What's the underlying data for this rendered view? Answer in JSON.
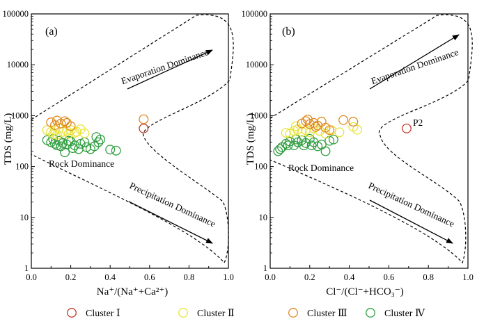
{
  "chart_data": [
    {
      "type": "scatter",
      "panel_label": "(a)",
      "xlabel": "Na⁺/(Na⁺+Ca²⁺)",
      "ylabel": "TDS (mg/L)",
      "xlim": [
        0,
        1.0
      ],
      "ylim": [
        1,
        100000
      ],
      "yscale": "log",
      "x_ticks": [
        "0.0",
        "0.2",
        "0.4",
        "0.6",
        "0.8",
        "1.0"
      ],
      "y_ticks": [
        "1",
        "10",
        "100",
        "1000",
        "10000",
        "100000"
      ],
      "annotations": {
        "evaporation": "Evaporation Dominance",
        "rock": "Rock Dominance",
        "precipitation": "Precipitation Dominance"
      },
      "series": [
        {
          "name": "Cluster Ⅰ",
          "color": "#c0392b",
          "points": [
            [
              0.57,
              560
            ]
          ]
        },
        {
          "name": "Cluster Ⅱ",
          "color": "#e8e33a",
          "points": [
            [
              0.1,
              480
            ],
            [
              0.12,
              520
            ],
            [
              0.14,
              560
            ],
            [
              0.16,
              480
            ],
            [
              0.18,
              500
            ],
            [
              0.2,
              520
            ],
            [
              0.22,
              460
            ],
            [
              0.25,
              540
            ],
            [
              0.27,
              450
            ],
            [
              0.13,
              420
            ],
            [
              0.11,
              430
            ],
            [
              0.19,
              440
            ],
            [
              0.08,
              520
            ],
            [
              0.23,
              480
            ]
          ]
        },
        {
          "name": "Cluster Ⅲ",
          "color": "#e08a1e",
          "points": [
            [
              0.1,
              740
            ],
            [
              0.13,
              800
            ],
            [
              0.15,
              700
            ],
            [
              0.17,
              780
            ],
            [
              0.2,
              620
            ],
            [
              0.12,
              650
            ],
            [
              0.18,
              720
            ],
            [
              0.57,
              850
            ]
          ]
        },
        {
          "name": "Cluster Ⅳ",
          "color": "#2f9e3f",
          "points": [
            [
              0.08,
              330
            ],
            [
              0.1,
              300
            ],
            [
              0.12,
              280
            ],
            [
              0.14,
              320
            ],
            [
              0.15,
              250
            ],
            [
              0.16,
              290
            ],
            [
              0.18,
              270
            ],
            [
              0.2,
              310
            ],
            [
              0.21,
              230
            ],
            [
              0.22,
              260
            ],
            [
              0.25,
              280
            ],
            [
              0.27,
              300
            ],
            [
              0.3,
              220
            ],
            [
              0.32,
              250
            ],
            [
              0.34,
              300
            ],
            [
              0.35,
              340
            ],
            [
              0.4,
              215
            ],
            [
              0.43,
              205
            ],
            [
              0.17,
              190
            ],
            [
              0.19,
              320
            ],
            [
              0.13,
              260
            ],
            [
              0.11,
              350
            ],
            [
              0.24,
              220
            ],
            [
              0.28,
              240
            ],
            [
              0.33,
              380
            ]
          ]
        }
      ]
    },
    {
      "type": "scatter",
      "panel_label": "(b)",
      "xlabel": "Cl⁻/(Cl⁻+HCO₃⁻)",
      "ylabel": "TDS (mg/L)",
      "xlim": [
        0,
        1.0
      ],
      "ylim": [
        1,
        100000
      ],
      "yscale": "log",
      "x_ticks": [
        "0.0",
        "0.2",
        "0.4",
        "0.6",
        "0.8",
        "1.0"
      ],
      "y_ticks": [
        "1",
        "10",
        "100",
        "1000",
        "10000",
        "100000"
      ],
      "annotations": {
        "evaporation": "Evaporation Dominance",
        "rock": "Rock Dominance",
        "precipitation": "Precipitation Dominance",
        "point_label": "P2"
      },
      "series": [
        {
          "name": "Cluster Ⅰ",
          "color": "#c0392b",
          "points": [
            [
              0.69,
              560
            ]
          ]
        },
        {
          "name": "Cluster Ⅱ",
          "color": "#e8e33a",
          "points": [
            [
              0.08,
              460
            ],
            [
              0.12,
              500
            ],
            [
              0.14,
              540
            ],
            [
              0.16,
              480
            ],
            [
              0.18,
              520
            ],
            [
              0.2,
              470
            ],
            [
              0.22,
              560
            ],
            [
              0.25,
              500
            ],
            [
              0.28,
              440
            ],
            [
              0.31,
              520
            ],
            [
              0.35,
              470
            ],
            [
              0.42,
              600
            ],
            [
              0.44,
              530
            ],
            [
              0.1,
              440
            ],
            [
              0.13,
              620
            ]
          ]
        },
        {
          "name": "Cluster Ⅲ",
          "color": "#e08a1e",
          "points": [
            [
              0.18,
              780
            ],
            [
              0.2,
              680
            ],
            [
              0.22,
              720
            ],
            [
              0.24,
              640
            ],
            [
              0.26,
              760
            ],
            [
              0.28,
              580
            ],
            [
              0.3,
              520
            ],
            [
              0.37,
              820
            ],
            [
              0.42,
              760
            ],
            [
              0.19,
              840
            ],
            [
              0.16,
              700
            ],
            [
              0.23,
              600
            ]
          ]
        },
        {
          "name": "Cluster Ⅳ",
          "color": "#2f9e3f",
          "points": [
            [
              0.04,
              200
            ],
            [
              0.06,
              240
            ],
            [
              0.08,
              280
            ],
            [
              0.1,
              310
            ],
            [
              0.12,
              260
            ],
            [
              0.14,
              300
            ],
            [
              0.16,
              330
            ],
            [
              0.18,
              290
            ],
            [
              0.2,
              350
            ],
            [
              0.22,
              300
            ],
            [
              0.24,
              250
            ],
            [
              0.26,
              270
            ],
            [
              0.28,
              200
            ],
            [
              0.3,
              320
            ],
            [
              0.32,
              340
            ],
            [
              0.05,
              220
            ],
            [
              0.09,
              260
            ],
            [
              0.13,
              340
            ],
            [
              0.17,
              260
            ],
            [
              0.21,
              260
            ]
          ]
        }
      ]
    }
  ],
  "legend": [
    {
      "label": "Cluster Ⅰ",
      "color": "#c0392b"
    },
    {
      "label": "Cluster Ⅱ",
      "color": "#e8e33a"
    },
    {
      "label": "Cluster Ⅲ",
      "color": "#e08a1e"
    },
    {
      "label": "Cluster Ⅳ",
      "color": "#2f9e3f"
    }
  ]
}
